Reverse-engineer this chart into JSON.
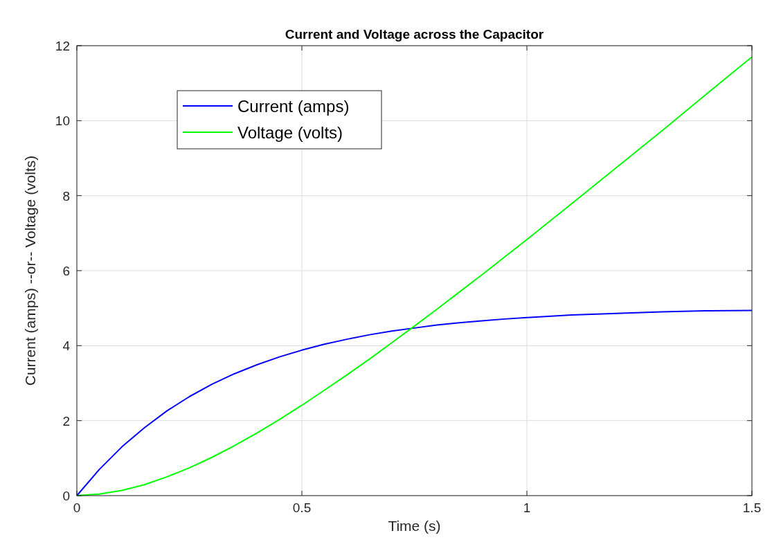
{
  "chart_data": {
    "type": "line",
    "title": "Current and Voltage across the Capacitor",
    "xlabel": "Time (s)",
    "ylabel": "Current (amps)  --or--  Voltage (volts)",
    "x": [
      0,
      0.05,
      0.1,
      0.15,
      0.2,
      0.25,
      0.3,
      0.35,
      0.4,
      0.45,
      0.5,
      0.55,
      0.6,
      0.65,
      0.7,
      0.75,
      0.8,
      0.85,
      0.9,
      0.95,
      1.0,
      1.1,
      1.2,
      1.3,
      1.4,
      1.5
    ],
    "series": [
      {
        "name": "Current (amps)",
        "color": "#0000ff",
        "values": [
          0,
          0.7,
          1.3,
          1.81,
          2.26,
          2.64,
          2.97,
          3.25,
          3.49,
          3.7,
          3.88,
          4.04,
          4.17,
          4.29,
          4.39,
          4.47,
          4.55,
          4.61,
          4.66,
          4.71,
          4.75,
          4.82,
          4.86,
          4.9,
          4.93,
          4.94
        ]
      },
      {
        "name": "Voltage (volts)",
        "color": "#00ff00",
        "values": [
          0,
          0.04,
          0.14,
          0.29,
          0.5,
          0.74,
          1.02,
          1.33,
          1.67,
          2.03,
          2.41,
          2.81,
          3.22,
          3.64,
          4.08,
          4.52,
          4.97,
          5.43,
          5.89,
          6.36,
          6.83,
          7.79,
          8.76,
          9.73,
          10.72,
          11.7
        ]
      }
    ],
    "xlim": [
      0,
      1.5
    ],
    "xticks": [
      0,
      0.5,
      1,
      1.5
    ],
    "ylim": [
      0,
      12
    ],
    "yticks": [
      0,
      2,
      4,
      6,
      8,
      10,
      12
    ],
    "grid": true,
    "legend": "top left",
    "marker": "none",
    "line_style": "solid"
  }
}
